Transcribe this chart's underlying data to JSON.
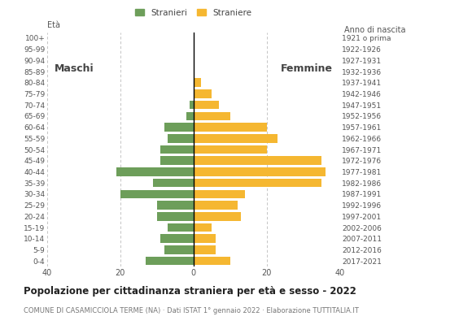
{
  "age_groups": [
    "0-4",
    "5-9",
    "10-14",
    "15-19",
    "20-24",
    "25-29",
    "30-34",
    "35-39",
    "40-44",
    "45-49",
    "50-54",
    "55-59",
    "60-64",
    "65-69",
    "70-74",
    "75-79",
    "80-84",
    "85-89",
    "90-94",
    "95-99",
    "100+"
  ],
  "birth_years": [
    "2017-2021",
    "2012-2016",
    "2007-2011",
    "2002-2006",
    "1997-2001",
    "1992-1996",
    "1987-1991",
    "1982-1986",
    "1977-1981",
    "1972-1976",
    "1967-1971",
    "1962-1966",
    "1957-1961",
    "1952-1956",
    "1947-1951",
    "1942-1946",
    "1937-1941",
    "1932-1936",
    "1927-1931",
    "1922-1926",
    "1921 o prima"
  ],
  "males": [
    13,
    8,
    9,
    7,
    10,
    10,
    20,
    11,
    21,
    9,
    9,
    7,
    8,
    2,
    1,
    0,
    0,
    0,
    0,
    0,
    0
  ],
  "females": [
    10,
    6,
    6,
    5,
    13,
    12,
    14,
    35,
    36,
    35,
    20,
    23,
    20,
    10,
    7,
    5,
    2,
    0,
    0,
    0,
    0
  ],
  "male_color": "#6d9e5a",
  "female_color": "#f5b731",
  "background_color": "#ffffff",
  "grid_color": "#bbbbbb",
  "title": "Popolazione per cittadinanza straniera per età e sesso - 2022",
  "subtitle": "COMUNE DI CASAMICCIOLA TERME (NA) · Dati ISTAT 1° gennaio 2022 · Elaborazione TUTTITALIA.IT",
  "ylabel_left": "Età",
  "ylabel_right": "Anno di nascita",
  "legend_male": "Stranieri",
  "legend_female": "Straniere",
  "xlim": 40,
  "xlabel_ticks": [
    -40,
    -20,
    0,
    20,
    40
  ],
  "xlabel_labels": [
    "40",
    "20",
    "0",
    "20",
    "40"
  ],
  "maschi_label": "Maschi",
  "femmine_label": "Femmine"
}
